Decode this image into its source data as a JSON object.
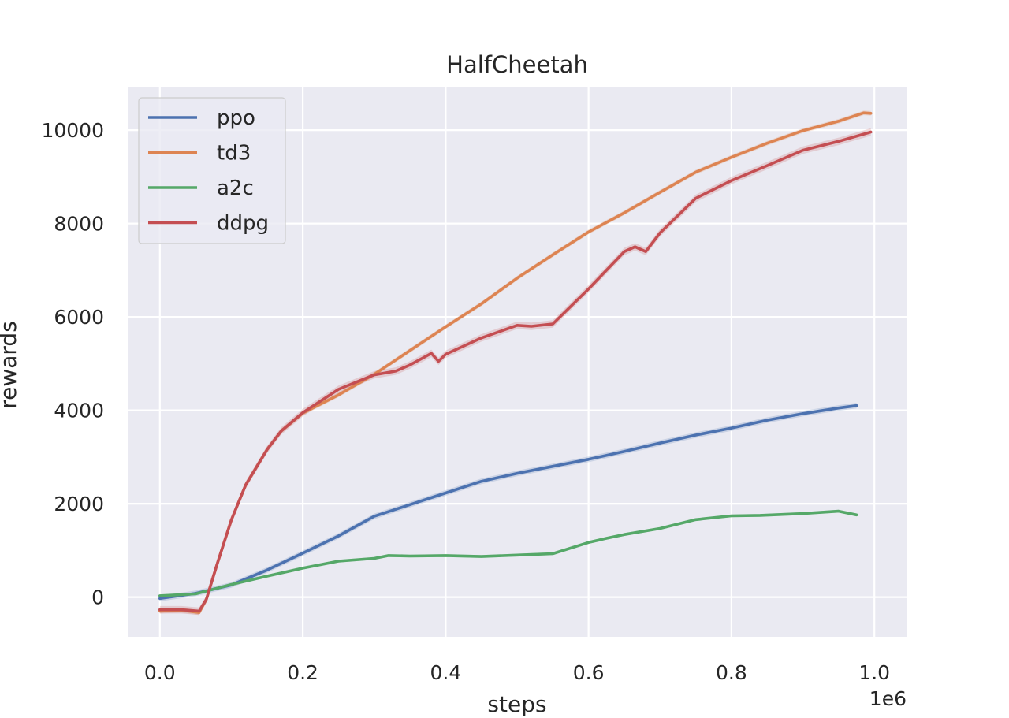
{
  "chart_data": {
    "type": "line",
    "title": "HalfCheetah",
    "xlabel": "steps",
    "ylabel": "rewards",
    "x_offset_label": "1e6",
    "xlim": [
      -0.045,
      1.045
    ],
    "ylim": [
      -850,
      10930
    ],
    "xticks": [
      0.0,
      0.2,
      0.4,
      0.6,
      0.8,
      1.0
    ],
    "xtick_labels": [
      "0.0",
      "0.2",
      "0.4",
      "0.6",
      "0.8",
      "1.0"
    ],
    "yticks": [
      0,
      2000,
      4000,
      6000,
      8000,
      10000
    ],
    "ytick_labels": [
      "0",
      "2000",
      "4000",
      "6000",
      "8000",
      "10000"
    ],
    "grid": true,
    "legend_position": "top-left",
    "colors": {
      "background": "#eaeaf2",
      "grid": "#ffffff",
      "ppo": "#4c72b0",
      "td3": "#dd8452",
      "a2c": "#55a868",
      "ddpg": "#c44e52"
    },
    "series": [
      {
        "name": "ppo",
        "color": "#4c72b0",
        "band": 60,
        "x": [
          0.0,
          0.05,
          0.1,
          0.15,
          0.2,
          0.25,
          0.3,
          0.35,
          0.4,
          0.45,
          0.5,
          0.55,
          0.6,
          0.65,
          0.7,
          0.75,
          0.8,
          0.85,
          0.9,
          0.95,
          0.975
        ],
        "y": [
          -30,
          80,
          260,
          580,
          940,
          1310,
          1730,
          1980,
          2230,
          2480,
          2650,
          2800,
          2950,
          3120,
          3300,
          3470,
          3620,
          3790,
          3930,
          4050,
          4100
        ]
      },
      {
        "name": "td3",
        "color": "#dd8452",
        "band": 50,
        "x": [
          0.0,
          0.03,
          0.055,
          0.065,
          0.08,
          0.1,
          0.12,
          0.15,
          0.17,
          0.2,
          0.25,
          0.3,
          0.35,
          0.4,
          0.45,
          0.5,
          0.55,
          0.6,
          0.65,
          0.7,
          0.75,
          0.8,
          0.85,
          0.9,
          0.95,
          0.985,
          0.995
        ],
        "y": [
          -300,
          -280,
          -330,
          -50,
          700,
          1650,
          2400,
          3160,
          3560,
          3940,
          4330,
          4770,
          5280,
          5790,
          6280,
          6830,
          7330,
          7820,
          8230,
          8670,
          9100,
          9420,
          9720,
          9990,
          10190,
          10370,
          10360
        ]
      },
      {
        "name": "a2c",
        "color": "#55a868",
        "band": 30,
        "x": [
          0.0,
          0.05,
          0.1,
          0.15,
          0.2,
          0.25,
          0.3,
          0.32,
          0.35,
          0.4,
          0.45,
          0.5,
          0.55,
          0.6,
          0.625,
          0.65,
          0.7,
          0.75,
          0.8,
          0.84,
          0.9,
          0.95,
          0.975
        ],
        "y": [
          30,
          70,
          270,
          450,
          620,
          770,
          830,
          890,
          880,
          890,
          870,
          900,
          930,
          1170,
          1260,
          1340,
          1470,
          1660,
          1740,
          1750,
          1790,
          1840,
          1760
        ]
      },
      {
        "name": "ddpg",
        "color": "#c44e52",
        "band": 80,
        "x": [
          0.0,
          0.03,
          0.055,
          0.065,
          0.08,
          0.1,
          0.12,
          0.15,
          0.17,
          0.2,
          0.25,
          0.3,
          0.33,
          0.35,
          0.38,
          0.39,
          0.4,
          0.45,
          0.5,
          0.52,
          0.55,
          0.6,
          0.65,
          0.665,
          0.68,
          0.7,
          0.75,
          0.8,
          0.85,
          0.9,
          0.95,
          0.995
        ],
        "y": [
          -270,
          -270,
          -300,
          -50,
          700,
          1650,
          2400,
          3160,
          3560,
          3950,
          4450,
          4760,
          4840,
          4970,
          5220,
          5050,
          5200,
          5550,
          5820,
          5800,
          5850,
          6600,
          7400,
          7500,
          7400,
          7800,
          8540,
          8920,
          9240,
          9570,
          9760,
          9960
        ]
      }
    ]
  }
}
